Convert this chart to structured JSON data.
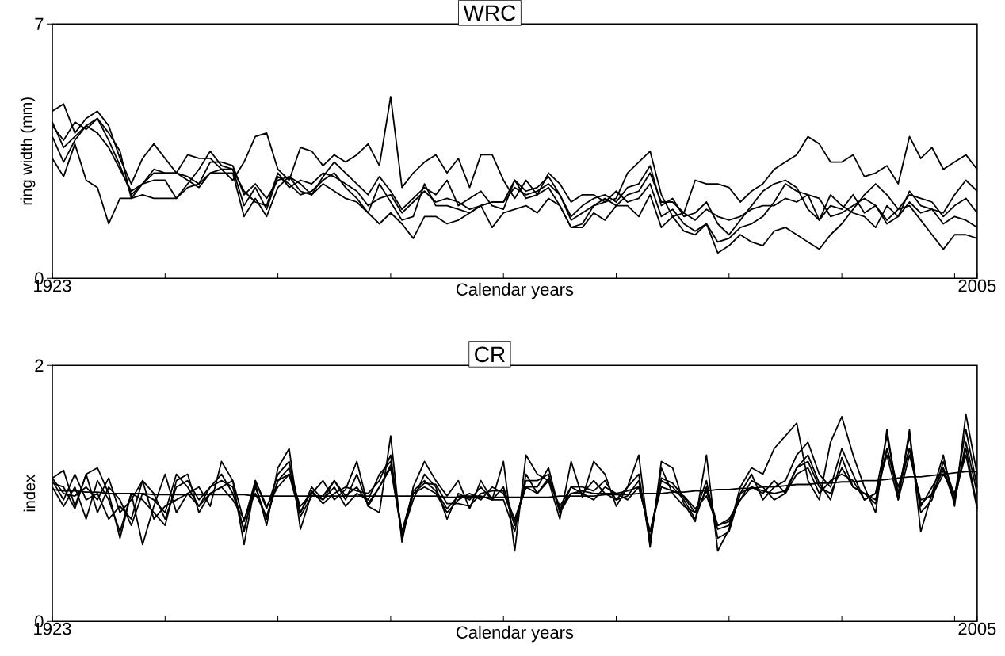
{
  "chart_data": [
    {
      "type": "line",
      "title": "WRC",
      "xlabel": "Calendar years",
      "ylabel": "ring width (mm)",
      "marker": "none",
      "line_style": "solid",
      "x": [
        1923,
        1924,
        1925,
        1926,
        1927,
        1928,
        1929,
        1930,
        1931,
        1932,
        1933,
        1934,
        1935,
        1936,
        1937,
        1938,
        1939,
        1940,
        1941,
        1942,
        1943,
        1944,
        1945,
        1946,
        1947,
        1948,
        1949,
        1950,
        1951,
        1952,
        1953,
        1954,
        1955,
        1956,
        1957,
        1958,
        1959,
        1960,
        1961,
        1962,
        1963,
        1964,
        1965,
        1966,
        1967,
        1968,
        1969,
        1970,
        1971,
        1972,
        1973,
        1974,
        1975,
        1976,
        1977,
        1978,
        1979,
        1980,
        1981,
        1982,
        1983,
        1984,
        1985,
        1986,
        1987,
        1988,
        1989,
        1990,
        1991,
        1992,
        1993,
        1994,
        1995,
        1996,
        1997,
        1998,
        1999,
        2000,
        2001,
        2002,
        2003,
        2004,
        2005
      ],
      "xlim": [
        1923,
        2005
      ],
      "ylim": [
        0,
        7
      ],
      "xticks": [
        {
          "value": 1923,
          "label": "1923"
        },
        {
          "value": 1933,
          "label": null
        },
        {
          "value": 1943,
          "label": null
        },
        {
          "value": 1953,
          "label": null
        },
        {
          "value": 1963,
          "label": null
        },
        {
          "value": 1973,
          "label": null
        },
        {
          "value": 1983,
          "label": null
        },
        {
          "value": 1993,
          "label": null
        },
        {
          "value": 2003,
          "label": null
        },
        {
          "value": 2005,
          "label": "2005"
        }
      ],
      "yticks": [
        0,
        7
      ],
      "series": [
        {
          "color": "#000000",
          "values": [
            4.6,
            4.8,
            4.0,
            4.4,
            4.6,
            4.2,
            3.3,
            2.6,
            3.3,
            3.7,
            3.3,
            2.9,
            3.4,
            3.3,
            3.3,
            3.0,
            2.7,
            3.2,
            3.9,
            4.0,
            3.0,
            2.7,
            3.6,
            3.5,
            3.1,
            3.4,
            3.2,
            3.4,
            3.7,
            3.1,
            5.0,
            2.5,
            2.9,
            3.2,
            3.4,
            2.9,
            3.3,
            2.5,
            3.4,
            3.4,
            2.7,
            2.2,
            2.7,
            2.3,
            2.9,
            2.6,
            2.1,
            2.3,
            2.3,
            2.1,
            2.2,
            2.9,
            3.2,
            3.5,
            2.3,
            1.7,
            1.8,
            2.7,
            2.6,
            2.6,
            2.5,
            2.1,
            2.4,
            2.6,
            3.0,
            3.2,
            3.4,
            3.9,
            3.7,
            3.2,
            3.2,
            3.4,
            2.8,
            2.9,
            3.1,
            2.6,
            3.9,
            3.3,
            3.6,
            3.0,
            3.2,
            3.4,
            3.0
          ]
        },
        {
          "color": "#000000",
          "values": [
            4.2,
            3.8,
            4.3,
            4.1,
            4.4,
            3.8,
            3.1,
            2.3,
            2.6,
            3.0,
            2.9,
            2.9,
            2.8,
            2.6,
            3.2,
            3.2,
            3.1,
            2.3,
            2.6,
            2.2,
            2.7,
            2.8,
            2.6,
            2.3,
            2.8,
            3.2,
            2.9,
            2.6,
            2.3,
            2.8,
            2.4,
            1.9,
            2.2,
            2.5,
            2.3,
            2.7,
            2.0,
            2.2,
            2.4,
            2.0,
            1.9,
            2.7,
            2.4,
            2.5,
            2.8,
            2.3,
            1.7,
            2.0,
            2.2,
            2.3,
            2.1,
            2.5,
            2.6,
            3.1,
            2.0,
            2.2,
            1.7,
            1.8,
            2.1,
            1.5,
            1.2,
            1.6,
            2.0,
            2.4,
            2.6,
            2.7,
            2.5,
            1.9,
            1.6,
            2.3,
            2.0,
            1.8,
            1.7,
            1.4,
            2.0,
            1.7,
            2.4,
            2.0,
            1.9,
            1.8,
            2.3,
            2.7,
            2.4
          ]
        },
        {
          "color": "#000000",
          "values": [
            4.3,
            3.6,
            3.9,
            4.2,
            4.0,
            3.6,
            3.0,
            2.4,
            2.6,
            2.9,
            2.9,
            2.9,
            2.7,
            2.5,
            2.9,
            3.0,
            3.0,
            2.4,
            2.1,
            2.0,
            2.9,
            2.5,
            2.7,
            2.6,
            2.9,
            2.8,
            2.6,
            2.4,
            2.0,
            2.2,
            2.3,
            1.8,
            2.1,
            2.4,
            2.1,
            2.2,
            2.1,
            1.9,
            2.0,
            2.1,
            2.1,
            2.5,
            2.3,
            2.4,
            2.6,
            2.3,
            1.6,
            1.8,
            2.0,
            2.2,
            2.0,
            2.3,
            2.4,
            2.9,
            2.1,
            2.1,
            1.8,
            1.6,
            1.9,
            1.7,
            1.6,
            1.7,
            1.9,
            2.0,
            2.0,
            2.2,
            2.1,
            2.3,
            1.6,
            2.0,
            1.9,
            2.3,
            1.8,
            2.0,
            1.6,
            1.9,
            2.3,
            2.2,
            2.1,
            1.7,
            2.0,
            2.2,
            1.8
          ]
        },
        {
          "color": "#000000",
          "values": [
            3.9,
            3.2,
            3.8,
            4.2,
            4.4,
            4.0,
            3.5,
            2.2,
            2.6,
            2.7,
            2.7,
            2.2,
            2.6,
            3.0,
            3.5,
            3.1,
            3.0,
            2.0,
            2.5,
            1.9,
            2.8,
            2.6,
            2.3,
            2.4,
            2.7,
            2.9,
            2.5,
            2.2,
            1.8,
            2.6,
            2.1,
            1.6,
            1.7,
            2.6,
            2.0,
            2.0,
            1.9,
            1.8,
            2.0,
            2.1,
            2.1,
            2.7,
            2.2,
            2.3,
            2.5,
            2.0,
            1.4,
            1.5,
            2.0,
            2.1,
            2.4,
            2.1,
            2.2,
            2.6,
            1.7,
            1.9,
            1.5,
            1.3,
            1.5,
            1.0,
            1.1,
            1.4,
            1.5,
            1.7,
            2.1,
            2.6,
            2.4,
            2.3,
            2.2,
            1.7,
            1.8,
            2.0,
            2.2,
            2.0,
            1.5,
            1.7,
            2.1,
            1.8,
            1.9,
            1.5,
            1.7,
            1.6,
            1.4
          ]
        },
        {
          "color": "#000000",
          "values": [
            3.3,
            2.8,
            3.7,
            2.7,
            2.5,
            1.5,
            2.2,
            2.2,
            2.3,
            2.2,
            2.2,
            2.2,
            2.5,
            2.6,
            2.9,
            2.9,
            2.9,
            1.7,
            2.2,
            1.7,
            2.5,
            2.8,
            2.4,
            2.3,
            2.6,
            2.4,
            2.2,
            2.1,
            1.8,
            1.5,
            1.8,
            1.5,
            1.1,
            1.7,
            1.7,
            1.5,
            1.6,
            1.8,
            2.0,
            1.4,
            1.8,
            1.9,
            2.0,
            1.8,
            2.2,
            2.0,
            1.4,
            1.4,
            1.8,
            1.6,
            2.0,
            2.0,
            1.7,
            2.3,
            1.4,
            1.7,
            1.3,
            1.2,
            1.5,
            0.7,
            0.9,
            1.2,
            1.0,
            0.9,
            1.3,
            1.4,
            1.2,
            1.0,
            0.8,
            1.2,
            1.5,
            1.9,
            2.3,
            2.6,
            2.3,
            1.9,
            2.0,
            1.6,
            1.2,
            0.8,
            1.2,
            1.2,
            1.1
          ]
        }
      ]
    },
    {
      "type": "line",
      "title": "CR",
      "xlabel": "Calendar years",
      "ylabel": "index",
      "marker": "none",
      "line_style": "solid",
      "x": [
        1923,
        1924,
        1925,
        1926,
        1927,
        1928,
        1929,
        1930,
        1931,
        1932,
        1933,
        1934,
        1935,
        1936,
        1937,
        1938,
        1939,
        1940,
        1941,
        1942,
        1943,
        1944,
        1945,
        1946,
        1947,
        1948,
        1949,
        1950,
        1951,
        1952,
        1953,
        1954,
        1955,
        1956,
        1957,
        1958,
        1959,
        1960,
        1961,
        1962,
        1963,
        1964,
        1965,
        1966,
        1967,
        1968,
        1969,
        1970,
        1971,
        1972,
        1973,
        1974,
        1975,
        1976,
        1977,
        1978,
        1979,
        1980,
        1981,
        1982,
        1983,
        1984,
        1985,
        1986,
        1987,
        1988,
        1989,
        1990,
        1991,
        1992,
        1993,
        1994,
        1995,
        1996,
        1997,
        1998,
        1999,
        2000,
        2001,
        2002,
        2003,
        2004,
        2005
      ],
      "xlim": [
        1923,
        2005
      ],
      "ylim": [
        0,
        2
      ],
      "xticks": [
        {
          "value": 1923,
          "label": "1923"
        },
        {
          "value": 1933,
          "label": null
        },
        {
          "value": 1943,
          "label": null
        },
        {
          "value": 1953,
          "label": null
        },
        {
          "value": 1963,
          "label": null
        },
        {
          "value": 1973,
          "label": null
        },
        {
          "value": 1983,
          "label": null
        },
        {
          "value": 1993,
          "label": null
        },
        {
          "value": 2003,
          "label": null
        },
        {
          "value": 2005,
          "label": "2005"
        }
      ],
      "yticks": [
        0,
        2
      ],
      "series": [
        {
          "color": "#000000",
          "values": [
            1.12,
            1.18,
            0.9,
            1.15,
            1.2,
            1.0,
            0.65,
            1.0,
            0.6,
            0.9,
            1.15,
            0.85,
            1.0,
            1.05,
            0.9,
            1.25,
            1.1,
            0.6,
            1.08,
            0.75,
            1.2,
            1.35,
            0.72,
            1.0,
            1.1,
            0.95,
            1.03,
            1.25,
            0.9,
            0.85,
            1.45,
            0.62,
            1.05,
            1.25,
            1.1,
            0.98,
            1.1,
            0.88,
            1.1,
            0.95,
            1.25,
            0.55,
            1.3,
            1.15,
            1.1,
            0.8,
            1.25,
            0.97,
            1.25,
            1.15,
            0.9,
            1.05,
            1.3,
            0.58,
            1.25,
            1.2,
            0.92,
            0.78,
            1.3,
            0.55,
            0.72,
            1.05,
            1.2,
            1.15,
            1.35,
            1.45,
            1.55,
            1.1,
            0.95,
            1.4,
            1.6,
            1.3,
            1.05,
            0.85,
            1.5,
            0.95,
            1.5,
            0.7,
            1.0,
            1.3,
            0.9,
            1.62,
            1.15
          ]
        },
        {
          "color": "#000000",
          "values": [
            1.1,
            0.95,
            1.15,
            0.95,
            1.0,
            0.8,
            0.9,
            0.8,
            1.1,
            1.0,
            0.8,
            1.05,
            1.1,
            0.95,
            1.05,
            1.15,
            1.0,
            0.72,
            1.05,
            0.8,
            1.1,
            1.2,
            0.85,
            1.05,
            0.95,
            1.05,
            0.9,
            1.0,
            0.95,
            1.15,
            1.25,
            0.7,
            1.0,
            1.05,
            1.0,
            0.85,
            0.95,
            1.0,
            0.95,
            1.05,
            1.0,
            0.8,
            1.05,
            1.05,
            1.2,
            0.85,
            1.0,
            1.0,
            0.95,
            1.05,
            1.0,
            0.95,
            1.05,
            0.7,
            1.1,
            1.05,
            0.95,
            0.8,
            1.05,
            0.75,
            0.8,
            0.95,
            1.05,
            1.0,
            1.1,
            1.0,
            1.2,
            1.25,
            1.05,
            1.0,
            1.2,
            1.05,
            1.0,
            0.95,
            1.35,
            1.05,
            1.35,
            0.9,
            1.05,
            1.2,
            0.95,
            1.35,
            0.9
          ]
        },
        {
          "color": "#000000",
          "values": [
            1.05,
            0.9,
            1.05,
            0.8,
            1.1,
            0.95,
            0.7,
            1.0,
            0.95,
            0.85,
            0.75,
            1.1,
            1.15,
            0.85,
            1.0,
            1.05,
            1.1,
            0.78,
            1.1,
            0.9,
            1.05,
            1.15,
            0.9,
            1.0,
            0.95,
            1.1,
            0.95,
            1.15,
            0.9,
            1.05,
            1.2,
            0.68,
            0.95,
            1.15,
            1.05,
            0.8,
            1.0,
            0.95,
            1.05,
            0.95,
            0.95,
            0.7,
            1.15,
            1.0,
            1.1,
            0.9,
            1.05,
            1.0,
            1.1,
            1.0,
            0.95,
            1.05,
            1.15,
            0.6,
            1.2,
            1.0,
            0.9,
            0.85,
            1.1,
            0.65,
            0.7,
            1.0,
            1.15,
            0.95,
            1.05,
            1.1,
            1.3,
            1.4,
            1.15,
            1.05,
            1.35,
            1.15,
            0.95,
            1.0,
            1.45,
            1.0,
            1.45,
            0.85,
            0.95,
            1.25,
            0.98,
            1.5,
            1.05
          ]
        },
        {
          "color": "#000000",
          "values": [
            1.12,
            1.0,
            0.98,
            1.05,
            0.95,
            1.12,
            0.85,
            0.95,
            1.1,
            0.8,
            0.9,
            0.95,
            1.0,
            0.9,
            1.05,
            1.1,
            1.05,
            0.7,
            1.1,
            0.88,
            1.15,
            1.25,
            0.85,
            1.02,
            0.92,
            1.0,
            1.05,
            1.02,
            1.0,
            1.1,
            1.3,
            0.65,
            1.0,
            1.08,
            1.07,
            0.92,
            0.92,
            0.9,
            1.0,
            1.02,
            1.02,
            0.75,
            1.1,
            1.1,
            1.15,
            0.85,
            1.05,
            1.05,
            1.02,
            1.1,
            0.95,
            0.98,
            1.1,
            0.65,
            1.12,
            1.08,
            0.97,
            0.85,
            1.02,
            0.72,
            0.75,
            1.0,
            1.05,
            1.02,
            1.0,
            1.02,
            1.2,
            1.3,
            1.08,
            0.95,
            1.28,
            1.05,
            1.0,
            0.92,
            1.35,
            1.0,
            1.35,
            0.92,
            1.0,
            1.18,
            0.93,
            1.4,
            1.0
          ]
        },
        {
          "color": "#000000",
          "values": [
            1.08,
            1.05,
            0.88,
            1.15,
            0.85,
            1.05,
            0.95,
            0.75,
            1.0,
            0.95,
            0.85,
            1.15,
            1.05,
            0.9,
            1.0,
            1.05,
            0.95,
            0.8,
            1.0,
            0.82,
            1.1,
            1.15,
            0.82,
            0.98,
            0.98,
            1.1,
            0.98,
            1.05,
            0.92,
            1.05,
            1.22,
            0.7,
            1.02,
            1.1,
            1.02,
            0.88,
            0.98,
            0.98,
            0.98,
            0.95,
            1.05,
            0.78,
            1.05,
            1.0,
            1.12,
            0.88,
            1.0,
            1.02,
            1.0,
            1.0,
            1.0,
            1.02,
            1.05,
            0.7,
            1.05,
            1.02,
            0.98,
            0.88,
            0.98,
            0.75,
            0.78,
            0.95,
            1.1,
            1.05,
            0.95,
            1.0,
            1.15,
            1.2,
            1.0,
            1.1,
            1.15,
            1.1,
            0.95,
            1.0,
            1.3,
            0.95,
            1.3,
            0.95,
            0.98,
            1.15,
            1.0,
            1.3,
            0.88
          ]
        },
        {
          "color": "#000000",
          "values": [
            1.03,
            1.02,
            1.02,
            1.01,
            1.01,
            1.0,
            1.0,
            1.0,
            1.0,
            0.99,
            0.99,
            0.99,
            0.99,
            0.99,
            0.99,
            0.99,
            0.99,
            0.99,
            0.98,
            0.98,
            0.98,
            0.98,
            0.98,
            0.98,
            0.98,
            0.98,
            0.98,
            0.98,
            0.98,
            0.98,
            0.98,
            0.98,
            0.98,
            0.98,
            0.98,
            0.97,
            0.97,
            0.97,
            0.97,
            0.97,
            0.97,
            0.97,
            0.97,
            0.97,
            0.97,
            0.98,
            0.98,
            0.98,
            0.98,
            0.99,
            0.99,
            0.99,
            1.0,
            1.0,
            1.0,
            1.01,
            1.01,
            1.02,
            1.02,
            1.03,
            1.03,
            1.04,
            1.04,
            1.05,
            1.05,
            1.06,
            1.07,
            1.07,
            1.08,
            1.08,
            1.09,
            1.09,
            1.1,
            1.1,
            1.11,
            1.12,
            1.13,
            1.13,
            1.14,
            1.15,
            1.16,
            1.17,
            1.17
          ]
        }
      ]
    }
  ]
}
